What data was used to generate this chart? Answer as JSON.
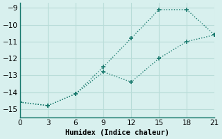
{
  "line1_x": [
    0,
    3,
    6,
    9,
    12,
    15,
    18,
    21
  ],
  "line1_y": [
    -14.6,
    -14.8,
    -14.1,
    -12.5,
    -10.8,
    -9.1,
    -9.1,
    -10.6
  ],
  "line2_x": [
    0,
    3,
    6,
    9,
    12,
    15,
    18,
    21
  ],
  "line2_y": [
    -14.6,
    -14.8,
    -14.1,
    -12.8,
    -13.4,
    -12.0,
    -11.0,
    -10.6
  ],
  "line_color": "#1a7a6e",
  "bg_color": "#d8f0ee",
  "grid_color": "#b8dcd8",
  "xlabel": "Humidex (Indice chaleur)",
  "xlim": [
    0,
    21
  ],
  "ylim": [
    -15.5,
    -8.7
  ],
  "xticks": [
    0,
    3,
    6,
    9,
    12,
    15,
    18,
    21
  ],
  "yticks": [
    -9,
    -10,
    -11,
    -12,
    -13,
    -14,
    -15
  ],
  "xlabel_fontsize": 7.5,
  "tick_fontsize": 7.5,
  "linewidth": 1.0,
  "markersize": 4.5,
  "markeredgewidth": 1.2
}
